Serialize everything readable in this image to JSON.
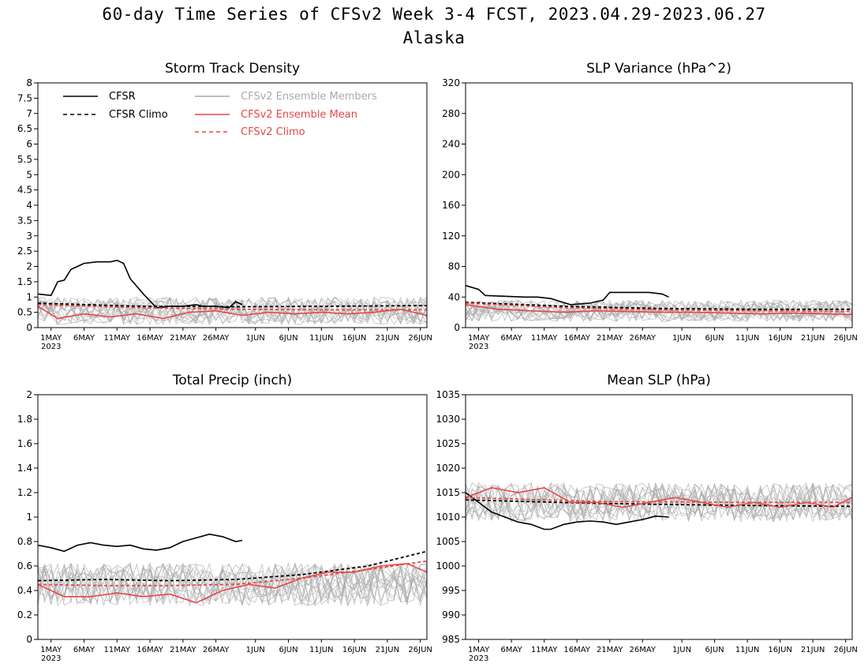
{
  "figure": {
    "title": "60-day Time Series of CFSv2 Week 3-4 FCST, 2023.04.29-2023.06.27",
    "subtitle": "Alaska"
  },
  "legend": {
    "placement": "top-left of Storm Track Density panel",
    "entries": [
      {
        "label": "CFSR",
        "color": "#000000",
        "style": "solid"
      },
      {
        "label": "CFSR Climo",
        "color": "#000000",
        "style": "dashed"
      },
      {
        "label": "CFSv2 Ensemble Members",
        "color": "#aaaaaa",
        "style": "solid"
      },
      {
        "label": "CFSv2 Ensemble Mean",
        "color": "#e84646",
        "style": "solid"
      },
      {
        "label": "CFSv2 Climo",
        "color": "#e84646",
        "style": "dashed"
      }
    ]
  },
  "colors": {
    "cfsr": "#000000",
    "members": "#aaaaaa",
    "mean": "#e84646"
  },
  "x_axis": {
    "start_date": "2023-04-29",
    "end_date": "2023-06-27",
    "tick_labels": [
      "1MAY",
      "6MAY",
      "11MAY",
      "16MAY",
      "21MAY",
      "26MAY",
      "1JUN",
      "6JUN",
      "11JUN",
      "16JUN",
      "21JUN",
      "26JUN"
    ],
    "tick_dates": [
      "2023-05-01",
      "2023-05-06",
      "2023-05-11",
      "2023-05-16",
      "2023-05-21",
      "2023-05-26",
      "2023-06-01",
      "2023-06-06",
      "2023-06-11",
      "2023-06-16",
      "2023-06-21",
      "2023-06-26"
    ],
    "year_label": "2023"
  },
  "chart_data": [
    {
      "type": "line",
      "title": "Storm Track Density",
      "ylim": [
        0,
        8
      ],
      "yticks": [
        "0",
        "0.5",
        "1",
        "1.5",
        "2",
        "2.5",
        "3",
        "3.5",
        "4",
        "4.5",
        "5",
        "5.5",
        "6",
        "6.5",
        "7",
        "7.5",
        "8"
      ],
      "grid": false,
      "ensemble_members": {
        "count": 16,
        "center": 0.55,
        "spread": 0.9
      },
      "series": [
        {
          "name": "CFSR",
          "style": "solid",
          "color": "#000000",
          "x": [
            "2023-04-29",
            "2023-05-01",
            "2023-05-02",
            "2023-05-03",
            "2023-05-04",
            "2023-05-06",
            "2023-05-08",
            "2023-05-10",
            "2023-05-11",
            "2023-05-12",
            "2023-05-13",
            "2023-05-15",
            "2023-05-17",
            "2023-05-19",
            "2023-05-21",
            "2023-05-23",
            "2023-05-24",
            "2023-05-26",
            "2023-05-28",
            "2023-05-29",
            "2023-05-30"
          ],
          "y": [
            1.1,
            1.05,
            1.5,
            1.55,
            1.9,
            2.1,
            2.15,
            2.15,
            2.2,
            2.1,
            1.6,
            1.1,
            0.65,
            0.7,
            0.7,
            0.75,
            0.7,
            0.7,
            0.65,
            0.85,
            0.75
          ]
        },
        {
          "name": "CFSR Climo",
          "style": "dashed",
          "color": "#000000",
          "x": [
            "2023-04-29",
            "2023-05-14",
            "2023-05-29",
            "2023-06-13",
            "2023-06-27"
          ],
          "y": [
            0.8,
            0.7,
            0.68,
            0.7,
            0.72
          ]
        },
        {
          "name": "CFSv2 Climo",
          "style": "dashed",
          "color": "#e84646",
          "x": [
            "2023-04-29",
            "2023-05-14",
            "2023-05-29",
            "2023-06-13",
            "2023-06-27"
          ],
          "y": [
            0.75,
            0.65,
            0.6,
            0.58,
            0.58
          ]
        },
        {
          "name": "CFSv2 Ensemble Mean",
          "style": "solid",
          "color": "#e84646",
          "x": [
            "2023-04-29",
            "2023-05-02",
            "2023-05-06",
            "2023-05-10",
            "2023-05-14",
            "2023-05-18",
            "2023-05-22",
            "2023-05-26",
            "2023-05-30",
            "2023-06-03",
            "2023-06-07",
            "2023-06-11",
            "2023-06-15",
            "2023-06-19",
            "2023-06-23",
            "2023-06-27"
          ],
          "y": [
            0.7,
            0.3,
            0.45,
            0.35,
            0.45,
            0.3,
            0.5,
            0.55,
            0.4,
            0.5,
            0.45,
            0.5,
            0.45,
            0.5,
            0.6,
            0.4
          ]
        }
      ]
    },
    {
      "type": "line",
      "title": "SLP Variance (hPa^2)",
      "ylim": [
        0,
        320
      ],
      "yticks": [
        "0",
        "40",
        "80",
        "120",
        "160",
        "200",
        "240",
        "280",
        "320"
      ],
      "grid": false,
      "ensemble_members": {
        "count": 16,
        "center": 22,
        "spread": 28
      },
      "series": [
        {
          "name": "CFSR",
          "style": "solid",
          "color": "#000000",
          "x": [
            "2023-04-29",
            "2023-05-01",
            "2023-05-02",
            "2023-05-05",
            "2023-05-08",
            "2023-05-10",
            "2023-05-12",
            "2023-05-15",
            "2023-05-18",
            "2023-05-20",
            "2023-05-21",
            "2023-05-24",
            "2023-05-27",
            "2023-05-29",
            "2023-05-30"
          ],
          "y": [
            55,
            50,
            42,
            41,
            40,
            40,
            38,
            30,
            32,
            36,
            46,
            46,
            46,
            44,
            40
          ]
        },
        {
          "name": "CFSR Climo",
          "style": "dashed",
          "color": "#000000",
          "x": [
            "2023-04-29",
            "2023-05-14",
            "2023-05-29",
            "2023-06-13",
            "2023-06-27"
          ],
          "y": [
            33,
            28,
            25,
            24,
            24
          ]
        },
        {
          "name": "CFSv2 Climo",
          "style": "dashed",
          "color": "#e84646",
          "x": [
            "2023-04-29",
            "2023-05-14",
            "2023-05-29",
            "2023-06-13",
            "2023-06-27"
          ],
          "y": [
            32,
            26,
            23,
            22,
            21
          ]
        },
        {
          "name": "CFSv2 Ensemble Mean",
          "style": "solid",
          "color": "#e84646",
          "x": [
            "2023-04-29",
            "2023-05-04",
            "2023-05-09",
            "2023-05-14",
            "2023-05-19",
            "2023-05-24",
            "2023-05-29",
            "2023-06-03",
            "2023-06-08",
            "2023-06-13",
            "2023-06-18",
            "2023-06-23",
            "2023-06-27"
          ],
          "y": [
            30,
            24,
            22,
            20,
            22,
            21,
            20,
            20,
            19,
            18,
            19,
            18,
            17
          ]
        }
      ]
    },
    {
      "type": "line",
      "title": "Total Precip (inch)",
      "ylim": [
        0,
        2
      ],
      "yticks": [
        "0",
        "0.2",
        "0.4",
        "0.6",
        "0.8",
        "1",
        "1.2",
        "1.4",
        "1.6",
        "1.8",
        "2"
      ],
      "grid": false,
      "ensemble_members": {
        "count": 16,
        "center": 0.45,
        "spread": 0.35
      },
      "series": [
        {
          "name": "CFSR",
          "style": "solid",
          "color": "#000000",
          "x": [
            "2023-04-29",
            "2023-05-01",
            "2023-05-03",
            "2023-05-05",
            "2023-05-07",
            "2023-05-09",
            "2023-05-11",
            "2023-05-13",
            "2023-05-15",
            "2023-05-17",
            "2023-05-19",
            "2023-05-21",
            "2023-05-23",
            "2023-05-25",
            "2023-05-27",
            "2023-05-29",
            "2023-05-30"
          ],
          "y": [
            0.77,
            0.75,
            0.72,
            0.77,
            0.79,
            0.77,
            0.76,
            0.77,
            0.74,
            0.73,
            0.75,
            0.8,
            0.83,
            0.86,
            0.84,
            0.8,
            0.81
          ]
        },
        {
          "name": "CFSR Climo",
          "style": "dashed",
          "color": "#000000",
          "x": [
            "2023-04-29",
            "2023-05-09",
            "2023-05-19",
            "2023-05-29",
            "2023-06-08",
            "2023-06-18",
            "2023-06-27"
          ],
          "y": [
            0.48,
            0.49,
            0.48,
            0.49,
            0.53,
            0.6,
            0.72
          ]
        },
        {
          "name": "CFSv2 Climo",
          "style": "dashed",
          "color": "#e84646",
          "x": [
            "2023-04-29",
            "2023-05-09",
            "2023-05-19",
            "2023-05-29",
            "2023-06-08",
            "2023-06-18",
            "2023-06-27"
          ],
          "y": [
            0.45,
            0.44,
            0.44,
            0.45,
            0.5,
            0.57,
            0.64
          ]
        },
        {
          "name": "CFSv2 Ensemble Mean",
          "style": "solid",
          "color": "#e84646",
          "x": [
            "2023-04-29",
            "2023-05-03",
            "2023-05-07",
            "2023-05-11",
            "2023-05-15",
            "2023-05-19",
            "2023-05-23",
            "2023-05-27",
            "2023-05-31",
            "2023-06-04",
            "2023-06-08",
            "2023-06-12",
            "2023-06-16",
            "2023-06-20",
            "2023-06-24",
            "2023-06-27"
          ],
          "y": [
            0.45,
            0.35,
            0.35,
            0.38,
            0.35,
            0.37,
            0.3,
            0.4,
            0.45,
            0.42,
            0.5,
            0.55,
            0.55,
            0.6,
            0.62,
            0.55
          ]
        }
      ]
    },
    {
      "type": "line",
      "title": "Mean SLP (hPa)",
      "ylim": [
        985,
        1035
      ],
      "yticks": [
        "985",
        "990",
        "995",
        "1000",
        "1005",
        "1010",
        "1015",
        "1020",
        "1025",
        "1030",
        "1035"
      ],
      "grid": false,
      "ensemble_members": {
        "count": 16,
        "center": 1013,
        "spread": 8
      },
      "series": [
        {
          "name": "CFSR",
          "style": "solid",
          "color": "#000000",
          "x": [
            "2023-04-29",
            "2023-05-01",
            "2023-05-03",
            "2023-05-05",
            "2023-05-07",
            "2023-05-09",
            "2023-05-11",
            "2023-05-12",
            "2023-05-14",
            "2023-05-16",
            "2023-05-18",
            "2023-05-20",
            "2023-05-22",
            "2023-05-24",
            "2023-05-26",
            "2023-05-28",
            "2023-05-30"
          ],
          "y": [
            1015,
            1013,
            1011,
            1010,
            1009,
            1008.5,
            1007.5,
            1007.5,
            1008.5,
            1009,
            1009.2,
            1009,
            1008.5,
            1009,
            1009.5,
            1010.2,
            1010
          ]
        },
        {
          "name": "CFSR Climo",
          "style": "dashed",
          "color": "#000000",
          "x": [
            "2023-04-29",
            "2023-05-19",
            "2023-06-08",
            "2023-06-27"
          ],
          "y": [
            1013.5,
            1012.8,
            1012.4,
            1012.2
          ]
        },
        {
          "name": "CFSv2 Climo",
          "style": "dashed",
          "color": "#e84646",
          "x": [
            "2023-04-29",
            "2023-05-19",
            "2023-06-08",
            "2023-06-27"
          ],
          "y": [
            1014,
            1013.2,
            1013,
            1013
          ]
        },
        {
          "name": "CFSv2 Ensemble Mean",
          "style": "solid",
          "color": "#e84646",
          "x": [
            "2023-04-29",
            "2023-05-03",
            "2023-05-07",
            "2023-05-11",
            "2023-05-15",
            "2023-05-19",
            "2023-05-23",
            "2023-05-27",
            "2023-05-31",
            "2023-06-04",
            "2023-06-08",
            "2023-06-12",
            "2023-06-16",
            "2023-06-20",
            "2023-06-24",
            "2023-06-27"
          ],
          "y": [
            1014,
            1016,
            1015,
            1016,
            1013,
            1013,
            1012,
            1013,
            1014,
            1013,
            1012,
            1013,
            1012,
            1013,
            1012,
            1014
          ]
        }
      ]
    }
  ]
}
